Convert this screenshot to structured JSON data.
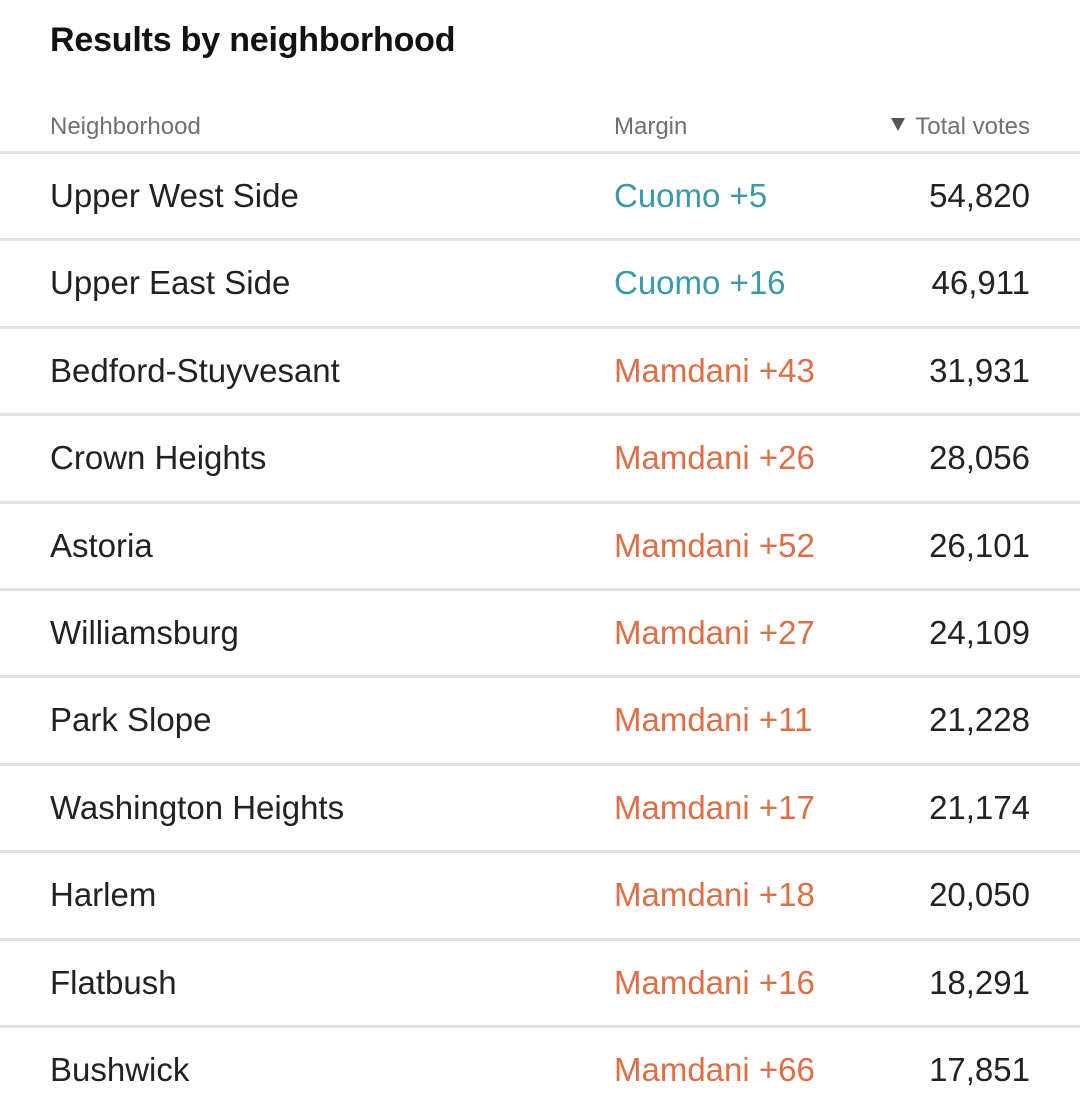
{
  "title": "Results by neighborhood",
  "colors": {
    "cuomo": "#3a9aa6",
    "mamdani": "#de6e45"
  },
  "chart_data": {
    "type": "table",
    "title": "Results by neighborhood",
    "columns": [
      "Neighborhood",
      "Margin",
      "Total votes"
    ],
    "sort": {
      "column": "Total votes",
      "direction": "descending"
    },
    "rows": [
      {
        "neighborhood": "Upper West Side",
        "margin": "Cuomo +5",
        "leader": "Cuomo",
        "margin_value": 5,
        "total": "54,820",
        "total_value": 54820
      },
      {
        "neighborhood": "Upper East Side",
        "margin": "Cuomo +16",
        "leader": "Cuomo",
        "margin_value": 16,
        "total": "46,911",
        "total_value": 46911
      },
      {
        "neighborhood": "Bedford-Stuyvesant",
        "margin": "Mamdani +43",
        "leader": "Mamdani",
        "margin_value": 43,
        "total": "31,931",
        "total_value": 31931
      },
      {
        "neighborhood": "Crown Heights",
        "margin": "Mamdani +26",
        "leader": "Mamdani",
        "margin_value": 26,
        "total": "28,056",
        "total_value": 28056
      },
      {
        "neighborhood": "Astoria",
        "margin": "Mamdani +52",
        "leader": "Mamdani",
        "margin_value": 52,
        "total": "26,101",
        "total_value": 26101
      },
      {
        "neighborhood": "Williamsburg",
        "margin": "Mamdani +27",
        "leader": "Mamdani",
        "margin_value": 27,
        "total": "24,109",
        "total_value": 24109
      },
      {
        "neighborhood": "Park Slope",
        "margin": "Mamdani +11",
        "leader": "Mamdani",
        "margin_value": 11,
        "total": "21,228",
        "total_value": 21228
      },
      {
        "neighborhood": "Washington Heights",
        "margin": "Mamdani +17",
        "leader": "Mamdani",
        "margin_value": 17,
        "total": "21,174",
        "total_value": 21174
      },
      {
        "neighborhood": "Harlem",
        "margin": "Mamdani +18",
        "leader": "Mamdani",
        "margin_value": 18,
        "total": "20,050",
        "total_value": 20050
      },
      {
        "neighborhood": "Flatbush",
        "margin": "Mamdani +16",
        "leader": "Mamdani",
        "margin_value": 16,
        "total": "18,291",
        "total_value": 18291
      },
      {
        "neighborhood": "Bushwick",
        "margin": "Mamdani +66",
        "leader": "Mamdani",
        "margin_value": 66,
        "total": "17,851",
        "total_value": 17851
      }
    ]
  }
}
